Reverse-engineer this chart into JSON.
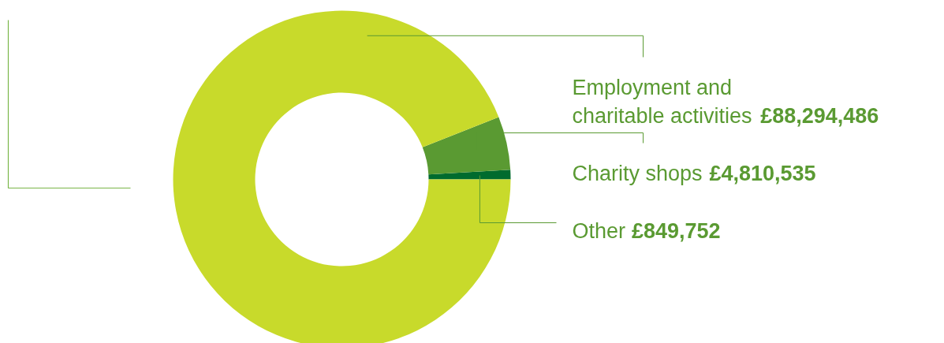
{
  "chart_data": {
    "type": "donut",
    "categories": [
      "Employment and charitable activities",
      "Charity shops",
      "Other"
    ],
    "values": [
      88294486,
      4810535,
      849752
    ],
    "value_labels": [
      "£88,294,486",
      "£4,810,535",
      "£849,752"
    ],
    "colors": [
      "#c8da2b",
      "#5a9a32",
      "#006b2e"
    ]
  }
}
